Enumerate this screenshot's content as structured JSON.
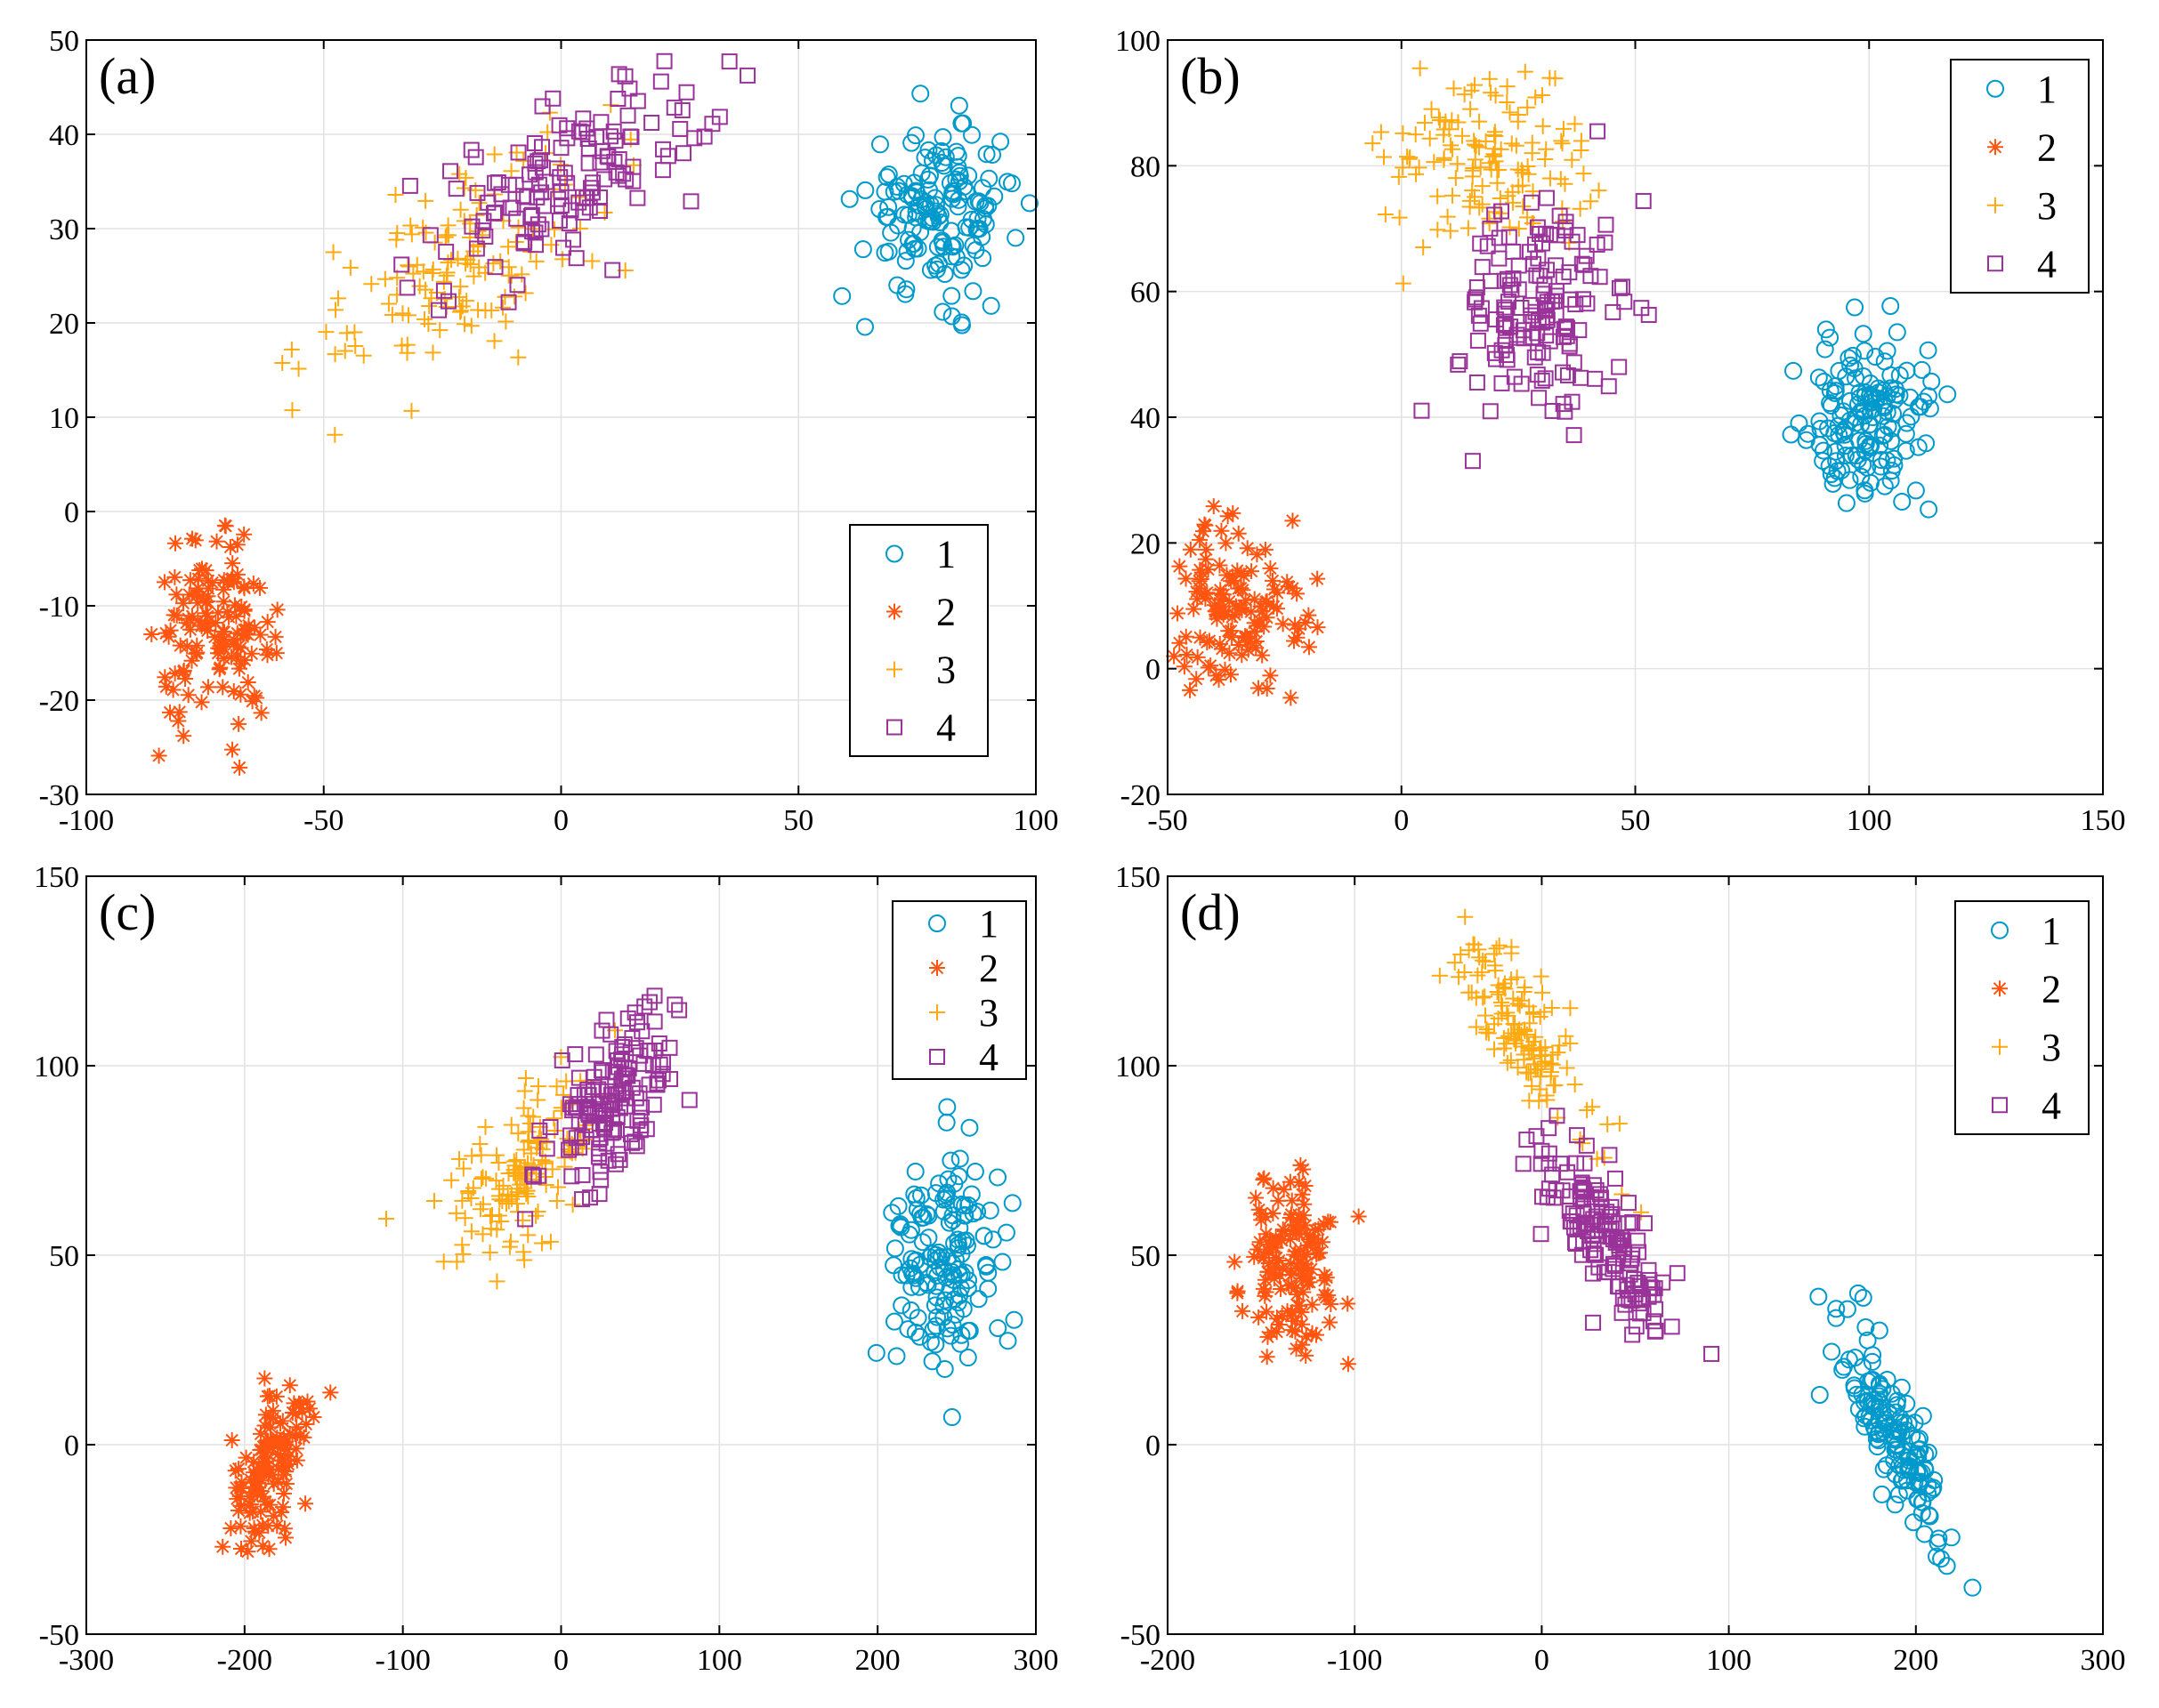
{
  "colors": {
    "series1": "#0099cc",
    "series2": "#ff5511",
    "series3": "#ffaa11",
    "series4": "#993399",
    "grid": "#e2e2e2",
    "axis": "#000000"
  },
  "chart_data": [
    {
      "type": "scatter",
      "panel_label": "(a)",
      "legend_position": "bottom-right",
      "grid": true,
      "xlim": [
        -100,
        100
      ],
      "ylim": [
        -30,
        50
      ],
      "xticks": [
        -100,
        -50,
        0,
        50,
        100
      ],
      "yticks": [
        -30,
        -20,
        -10,
        0,
        10,
        20,
        30,
        40,
        50
      ],
      "xtick_labels": [
        "-100",
        "-50",
        "0",
        "50",
        "100"
      ],
      "ytick_labels": [
        "-30",
        "-20",
        "-10",
        "0",
        "10",
        "20",
        "30",
        "40",
        "50"
      ],
      "series": [
        {
          "name": "1",
          "marker": "circle",
          "cluster": {
            "center": [
              80,
              32
            ],
            "spread": [
              8,
              4.5
            ],
            "count": 150,
            "angle": 0
          }
        },
        {
          "name": "2",
          "marker": "asterisk",
          "cluster": {
            "center": [
              -73,
              -13
            ],
            "spread": [
              6,
              4.5
            ],
            "count": 140,
            "angle": 0
          }
        },
        {
          "name": "3",
          "marker": "plus",
          "cluster": {
            "center": [
              -20,
              27
            ],
            "spread": [
              17,
              5
            ],
            "count": 140,
            "angle": 0.25
          }
        },
        {
          "name": "4",
          "marker": "square",
          "cluster": {
            "center": [
              0,
              35
            ],
            "spread": [
              16,
              4
            ],
            "count": 140,
            "angle": 0.25
          }
        }
      ]
    },
    {
      "type": "scatter",
      "panel_label": "(b)",
      "legend_position": "top-right",
      "grid": true,
      "xlim": [
        -50,
        150
      ],
      "ylim": [
        -20,
        100
      ],
      "xticks": [
        -50,
        0,
        50,
        100,
        150
      ],
      "yticks": [
        -20,
        0,
        20,
        40,
        60,
        80,
        100
      ],
      "xtick_labels": [
        "-50",
        "0",
        "50",
        "100",
        "150"
      ],
      "ytick_labels": [
        "-20",
        "0",
        "20",
        "40",
        "60",
        "80",
        "100"
      ],
      "series": [
        {
          "name": "1",
          "marker": "circle",
          "cluster": {
            "center": [
              100,
              39
            ],
            "spread": [
              7,
              7
            ],
            "count": 150,
            "angle": 0
          }
        },
        {
          "name": "2",
          "marker": "asterisk",
          "cluster": {
            "center": [
              -35,
              10
            ],
            "spread": [
              7,
              7
            ],
            "count": 140,
            "angle": 0
          }
        },
        {
          "name": "3",
          "marker": "plus",
          "cluster": {
            "center": [
              18,
              80
            ],
            "spread": [
              11,
              7
            ],
            "count": 140,
            "angle": 0
          }
        },
        {
          "name": "4",
          "marker": "square",
          "cluster": {
            "center": [
              30,
              58
            ],
            "spread": [
              9,
              8.5
            ],
            "count": 150,
            "angle": 0
          }
        }
      ]
    },
    {
      "type": "scatter",
      "panel_label": "(c)",
      "legend_position": "top-right",
      "grid": true,
      "xlim": [
        -300,
        300
      ],
      "ylim": [
        -50,
        150
      ],
      "xticks": [
        -300,
        -200,
        -100,
        0,
        100,
        200,
        300
      ],
      "yticks": [
        -50,
        0,
        50,
        100,
        150
      ],
      "xtick_labels": [
        "-300",
        "-200",
        "-100",
        "0",
        "100",
        "200",
        "300"
      ],
      "ytick_labels": [
        "-50",
        "0",
        "50",
        "100",
        "150"
      ],
      "series": [
        {
          "name": "1",
          "marker": "circle",
          "cluster": {
            "center": [
              240,
              47
            ],
            "spread": [
              16,
              14
            ],
            "count": 150,
            "angle": 0
          }
        },
        {
          "name": "2",
          "marker": "asterisk",
          "cluster": {
            "center": [
              -185,
              -7
            ],
            "spread": [
              15,
              9
            ],
            "count": 140,
            "angle": 0.55
          }
        },
        {
          "name": "3",
          "marker": "plus",
          "cluster": {
            "center": [
              -25,
              72
            ],
            "spread": [
              26,
              10
            ],
            "count": 150,
            "angle": 0.35
          }
        },
        {
          "name": "4",
          "marker": "square",
          "cluster": {
            "center": [
              30,
              92
            ],
            "spread": [
              24,
              9
            ],
            "count": 150,
            "angle": 0.35
          }
        }
      ]
    },
    {
      "type": "scatter",
      "panel_label": "(d)",
      "legend_position": "top-right",
      "grid": true,
      "xlim": [
        -200,
        300
      ],
      "ylim": [
        -50,
        150
      ],
      "xticks": [
        -200,
        -100,
        0,
        100,
        200,
        300
      ],
      "yticks": [
        -50,
        0,
        50,
        100,
        150
      ],
      "xtick_labels": [
        "-200",
        "-100",
        "0",
        "100",
        "200",
        "300"
      ],
      "ytick_labels": [
        "-50",
        "0",
        "50",
        "100",
        "150"
      ],
      "series": [
        {
          "name": "1",
          "marker": "circle",
          "cluster": {
            "center": [
              188,
              2
            ],
            "spread": [
              20,
              6
            ],
            "count": 150,
            "angle": -0.75
          }
        },
        {
          "name": "2",
          "marker": "asterisk",
          "cluster": {
            "center": [
              -133,
              50
            ],
            "spread": [
              12,
              12
            ],
            "count": 150,
            "angle": 0
          }
        },
        {
          "name": "3",
          "marker": "plus",
          "cluster": {
            "center": [
              -10,
              108
            ],
            "spread": [
              22,
              7
            ],
            "count": 140,
            "angle": -0.6
          }
        },
        {
          "name": "4",
          "marker": "square",
          "cluster": {
            "center": [
              32,
              56
            ],
            "spread": [
              22,
              7
            ],
            "count": 150,
            "angle": -0.6
          }
        }
      ]
    }
  ]
}
